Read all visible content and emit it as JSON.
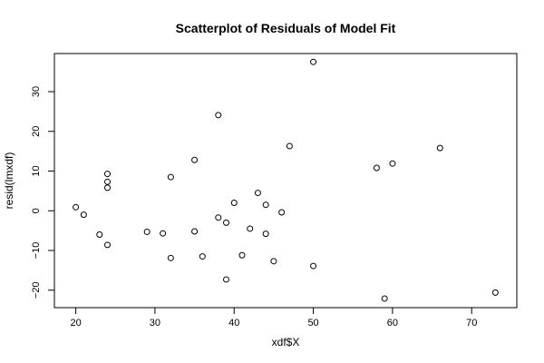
{
  "chart_data": {
    "type": "scatter",
    "title": "Scatterplot of Residuals of Model Fit",
    "xlabel": "xdf$X",
    "ylabel": "resid(lmxdf)",
    "xlim": [
      17.3,
      75.7
    ],
    "ylim": [
      -24.4,
      39.6
    ],
    "x_ticks": [
      20,
      30,
      40,
      50,
      60,
      70
    ],
    "y_ticks": [
      -20,
      -10,
      0,
      10,
      20,
      30
    ],
    "grid": false,
    "legend": "none",
    "point_style": "open-circle",
    "color": "#000000",
    "points": [
      {
        "x": 20,
        "y": 0.9
      },
      {
        "x": 21,
        "y": -1.0
      },
      {
        "x": 23,
        "y": -6.0
      },
      {
        "x": 24,
        "y": 9.3
      },
      {
        "x": 24,
        "y": 7.3
      },
      {
        "x": 24,
        "y": 5.8
      },
      {
        "x": 24,
        "y": -8.6
      },
      {
        "x": 29,
        "y": -5.3
      },
      {
        "x": 31,
        "y": -5.7
      },
      {
        "x": 32,
        "y": 8.5
      },
      {
        "x": 32,
        "y": -11.9
      },
      {
        "x": 35,
        "y": 12.8
      },
      {
        "x": 35,
        "y": -5.2
      },
      {
        "x": 36,
        "y": -11.5
      },
      {
        "x": 38,
        "y": 24.1
      },
      {
        "x": 38,
        "y": -1.7
      },
      {
        "x": 39,
        "y": -3.0
      },
      {
        "x": 39,
        "y": -17.3
      },
      {
        "x": 40,
        "y": 2.0
      },
      {
        "x": 41,
        "y": -11.2
      },
      {
        "x": 42,
        "y": -4.5
      },
      {
        "x": 43,
        "y": 4.5
      },
      {
        "x": 44,
        "y": 1.5
      },
      {
        "x": 44,
        "y": -5.8
      },
      {
        "x": 45,
        "y": -12.7
      },
      {
        "x": 46,
        "y": -0.4
      },
      {
        "x": 47,
        "y": 16.3
      },
      {
        "x": 50,
        "y": 37.5
      },
      {
        "x": 50,
        "y": -13.9
      },
      {
        "x": 58,
        "y": 10.8
      },
      {
        "x": 59,
        "y": -22.1
      },
      {
        "x": 60,
        "y": 11.9
      },
      {
        "x": 66,
        "y": 15.8
      },
      {
        "x": 73,
        "y": -20.6
      }
    ]
  }
}
